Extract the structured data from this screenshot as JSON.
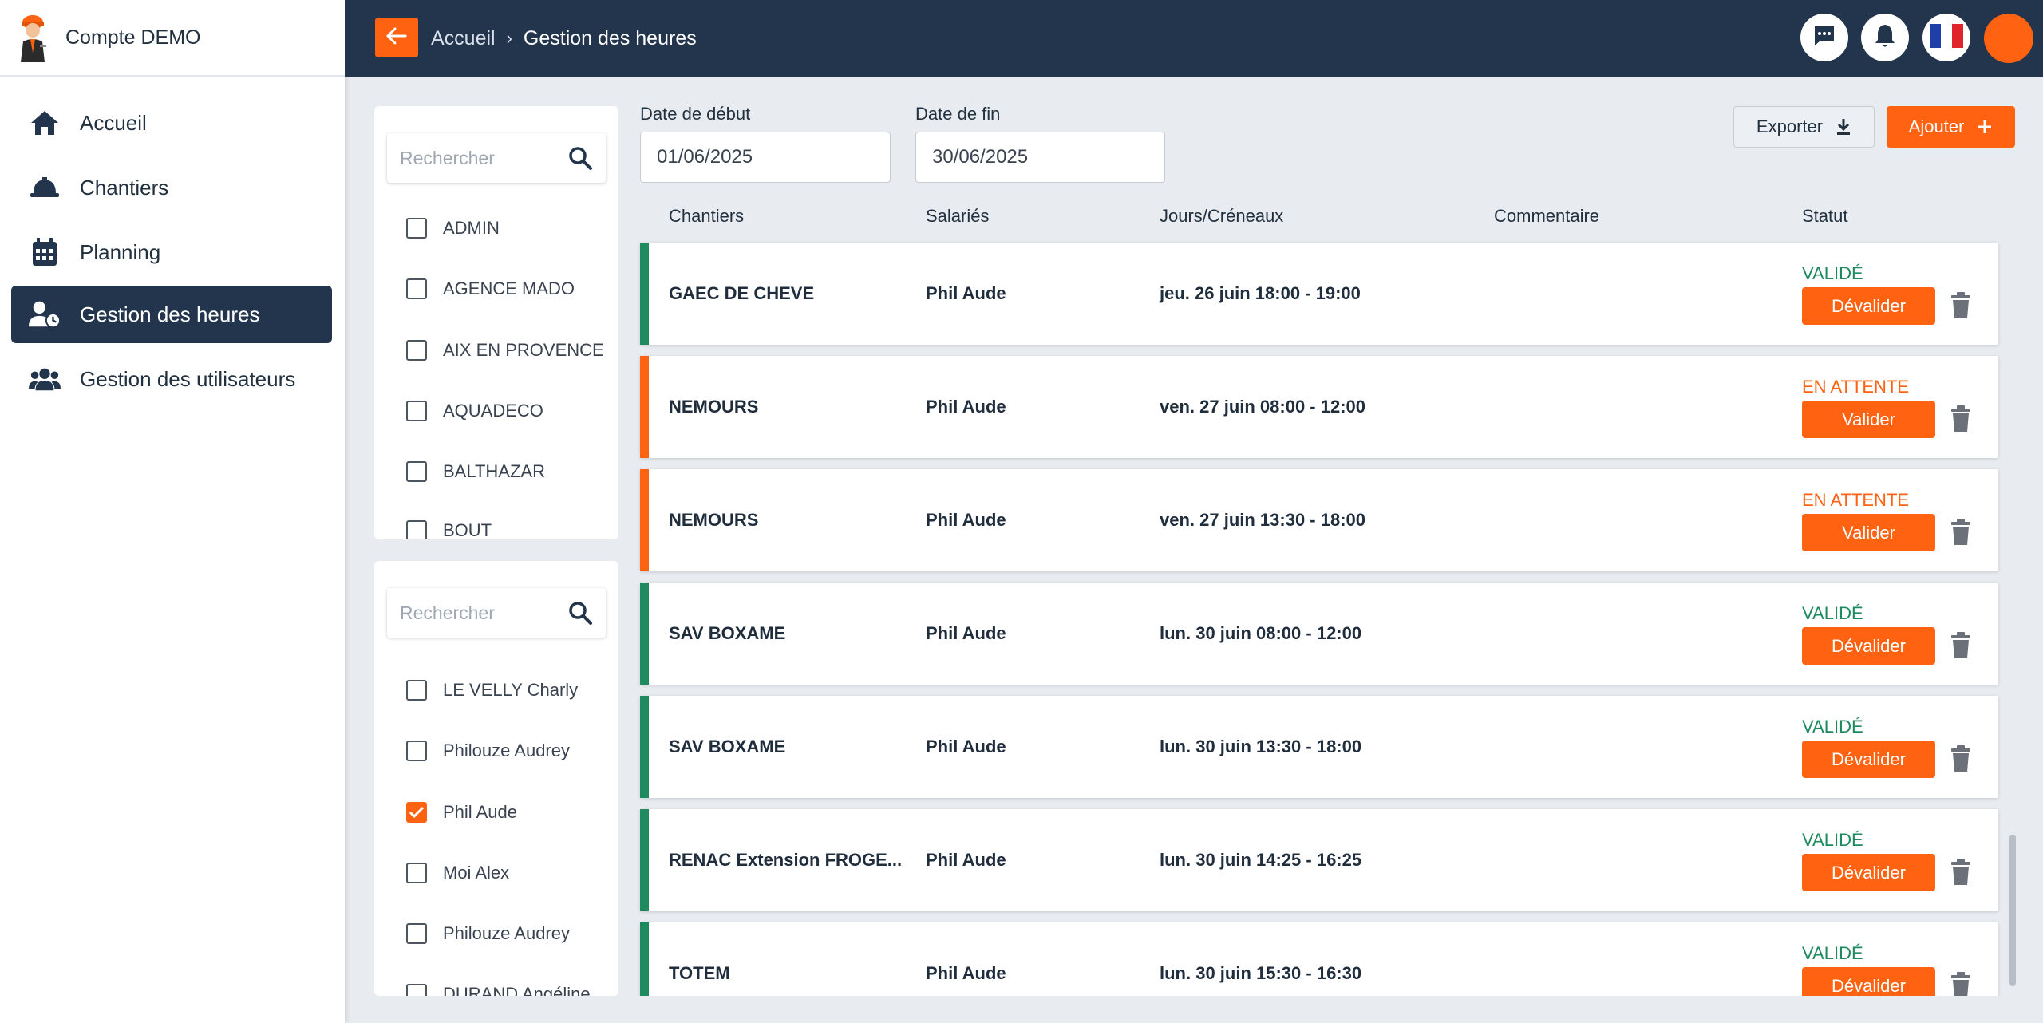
{
  "app": {
    "account_name": "Compte DEMO"
  },
  "sidebar": {
    "items": [
      {
        "label": "Accueil",
        "icon": "home-icon"
      },
      {
        "label": "Chantiers",
        "icon": "hard-hat-icon"
      },
      {
        "label": "Planning",
        "icon": "calendar-icon"
      },
      {
        "label": "Gestion des heures",
        "icon": "user-clock-icon",
        "active": true
      },
      {
        "label": "Gestion des utilisateurs",
        "icon": "users-icon"
      }
    ]
  },
  "header": {
    "breadcrumb": {
      "home": "Accueil",
      "separator": "›",
      "current": "Gestion des heures"
    }
  },
  "filters": {
    "chantiers": {
      "search_placeholder": "Rechercher",
      "items": [
        {
          "label": "ADMIN",
          "checked": false
        },
        {
          "label": "AGENCE MADO",
          "checked": false
        },
        {
          "label": "AIX EN PROVENCE",
          "checked": false
        },
        {
          "label": "AQUADECO",
          "checked": false
        },
        {
          "label": "BALTHAZAR",
          "checked": false
        },
        {
          "label": "BOUT",
          "checked": false
        }
      ]
    },
    "salaries": {
      "search_placeholder": "Rechercher",
      "items": [
        {
          "label": "LE VELLY Charly",
          "checked": false
        },
        {
          "label": "Philouze Audrey",
          "checked": false
        },
        {
          "label": "Phil Aude",
          "checked": true
        },
        {
          "label": "Moi Alex",
          "checked": false
        },
        {
          "label": "Philouze Audrey",
          "checked": false
        },
        {
          "label": "DURAND Angéline",
          "checked": false
        }
      ]
    }
  },
  "dates": {
    "start_label": "Date de début",
    "start_value": "01/06/2025",
    "end_label": "Date de fin",
    "end_value": "30/06/2025"
  },
  "actions": {
    "export_label": "Exporter",
    "add_label": "Ajouter"
  },
  "table": {
    "headers": [
      "Chantiers",
      "Salariés",
      "Jours/Créneaux",
      "Commentaire",
      "Statut"
    ],
    "rows": [
      {
        "chantier": "GAEC DE CHEVE",
        "salarie": "Phil Aude",
        "creneau": "jeu. 26 juin 18:00 - 19:00",
        "commentaire": "",
        "statut": "VALIDÉ",
        "action": "Dévalider",
        "color": "#1e8a5e"
      },
      {
        "chantier": "NEMOURS",
        "salarie": "Phil Aude",
        "creneau": "ven. 27 juin 08:00 - 12:00",
        "commentaire": "",
        "statut": "EN ATTENTE",
        "action": "Valider",
        "color": "#ff6211"
      },
      {
        "chantier": "NEMOURS",
        "salarie": "Phil Aude",
        "creneau": "ven. 27 juin 13:30 - 18:00",
        "commentaire": "",
        "statut": "EN ATTENTE",
        "action": "Valider",
        "color": "#ff6211"
      },
      {
        "chantier": "SAV BOXAME",
        "salarie": "Phil Aude",
        "creneau": "lun. 30 juin 08:00 - 12:00",
        "commentaire": "",
        "statut": "VALIDÉ",
        "action": "Dévalider",
        "color": "#1e8a5e"
      },
      {
        "chantier": "SAV BOXAME",
        "salarie": "Phil Aude",
        "creneau": "lun. 30 juin 13:30 - 18:00",
        "commentaire": "",
        "statut": "VALIDÉ",
        "action": "Dévalider",
        "color": "#1e8a5e"
      },
      {
        "chantier": "RENAC Extension FROGE...",
        "salarie": "Phil Aude",
        "creneau": "lun. 30 juin 14:25 - 16:25",
        "commentaire": "",
        "statut": "VALIDÉ",
        "action": "Dévalider",
        "color": "#1e8a5e"
      },
      {
        "chantier": "TOTEM",
        "salarie": "Phil Aude",
        "creneau": "lun. 30 juin 15:30 - 16:30",
        "commentaire": "",
        "statut": "VALIDÉ",
        "action": "Dévalider",
        "color": "#1e8a5e"
      }
    ]
  },
  "colors": {
    "accent": "#ff6211",
    "navy": "#22354d",
    "valid": "#1e8a5e",
    "pending": "#ff6211"
  }
}
